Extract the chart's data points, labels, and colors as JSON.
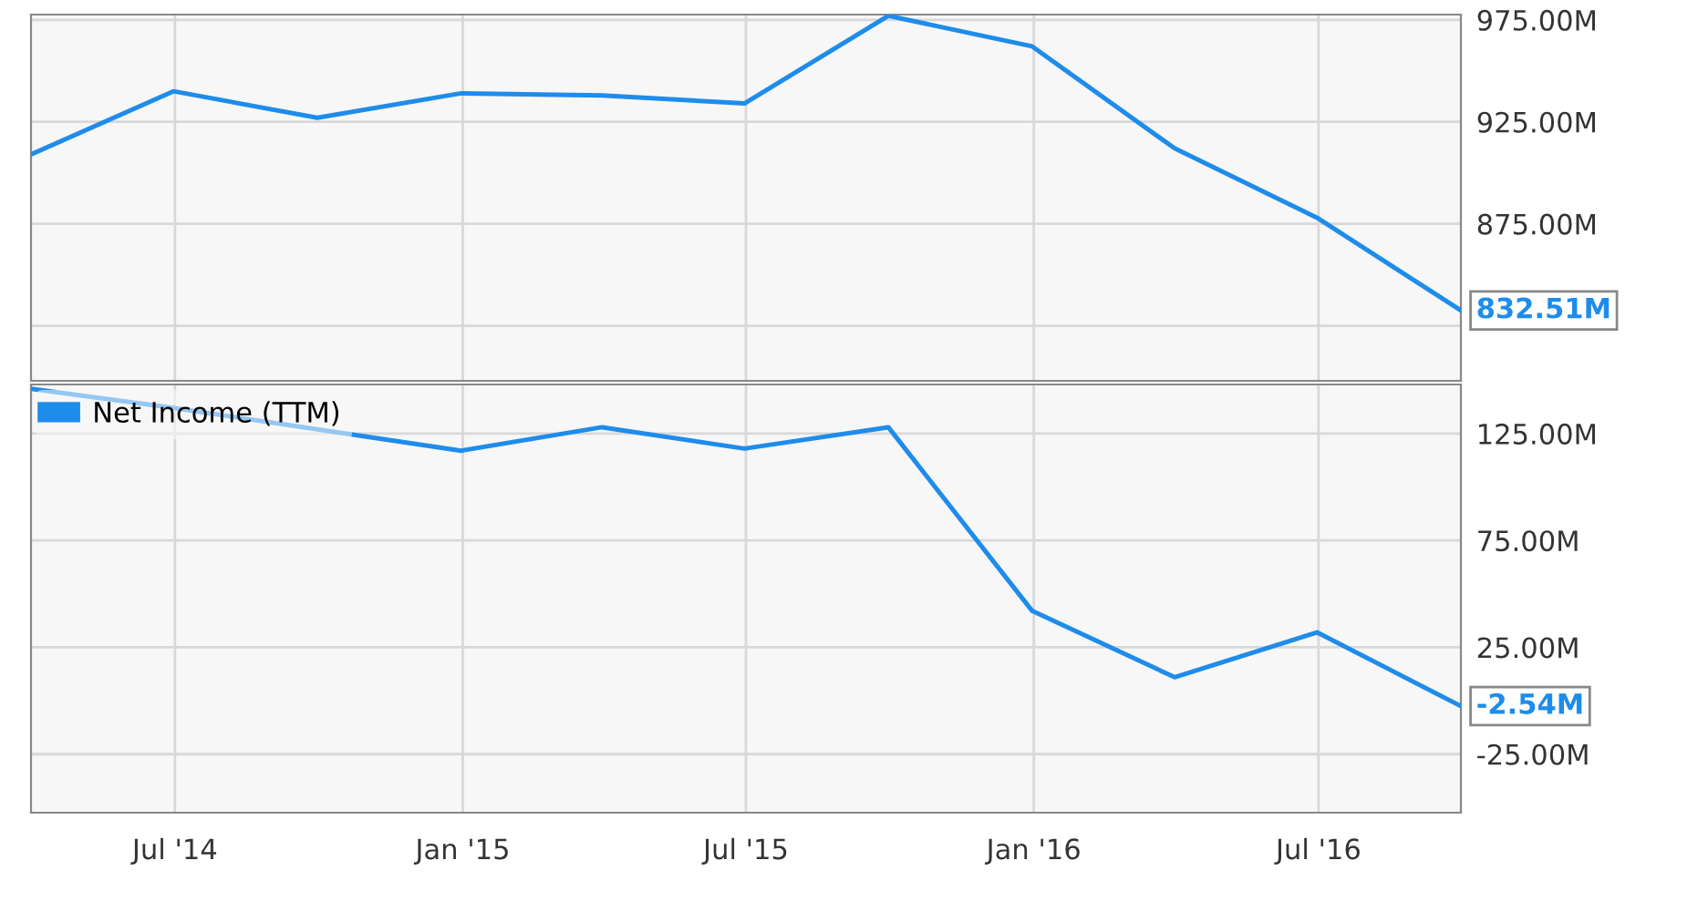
{
  "chart_data": [
    {
      "type": "line",
      "x": [
        "2014-03-31",
        "2014-06-30",
        "2014-09-30",
        "2014-12-31",
        "2015-03-31",
        "2015-06-30",
        "2015-09-30",
        "2015-12-31",
        "2016-03-31",
        "2016-06-30",
        "2016-09-30"
      ],
      "series": [
        {
          "color": "#1e8ceb",
          "values": [
            909,
            940,
            927,
            939,
            938,
            934,
            977,
            962,
            912,
            878,
            832.51
          ],
          "value_labels": [
            null,
            null,
            null,
            null,
            null,
            null,
            null,
            null,
            null,
            null,
            "832.51M"
          ]
        }
      ],
      "xlim": [
        "2014-03-31",
        "2016-09-30"
      ],
      "xticks": [
        {
          "value": "2014-07-01",
          "label": null
        },
        {
          "value": "2015-01-01",
          "label": null
        },
        {
          "value": "2015-07-01",
          "label": null
        },
        {
          "value": "2016-01-01",
          "label": null
        },
        {
          "value": "2016-07-01",
          "label": null
        }
      ],
      "ylim": [
        798,
        977.6
      ],
      "yticks": [
        {
          "value": 825,
          "label": null
        },
        {
          "value": 875,
          "label": "875.00M"
        },
        {
          "value": 925,
          "label": "925.00M"
        },
        {
          "value": 975,
          "label": "975.00M"
        }
      ],
      "tick_labels": "y",
      "grid": true,
      "marker": "none",
      "line_style": "solid"
    },
    {
      "type": "line",
      "x": [
        "2014-03-31",
        "2014-06-30",
        "2014-09-30",
        "2014-12-31",
        "2015-03-31",
        "2015-06-30",
        "2015-09-30",
        "2015-12-31",
        "2016-03-31",
        "2016-06-30",
        "2016-09-30"
      ],
      "series": [
        {
          "name": "Net Income (TTM)",
          "color": "#1e8ceb",
          "values": [
            146,
            137,
            127,
            117,
            128,
            118,
            128,
            42,
            11,
            32,
            -2.54
          ],
          "value_labels": [
            null,
            null,
            null,
            null,
            null,
            null,
            null,
            null,
            null,
            null,
            "-2.54M"
          ]
        }
      ],
      "xlim": [
        "2014-03-31",
        "2016-09-30"
      ],
      "xticks": [
        {
          "value": "2014-07-01",
          "label": "Jul '14"
        },
        {
          "value": "2015-01-01",
          "label": "Jan '15"
        },
        {
          "value": "2015-07-01",
          "label": "Jul '15"
        },
        {
          "value": "2016-01-01",
          "label": "Jan '16"
        },
        {
          "value": "2016-07-01",
          "label": "Jul '16"
        }
      ],
      "ylim": [
        -52.4,
        148
      ],
      "yticks": [
        {
          "value": -25,
          "label": "-25.00M"
        },
        {
          "value": 25,
          "label": "25.00M"
        },
        {
          "value": 75,
          "label": "75.00M"
        },
        {
          "value": 125,
          "label": "125.00M"
        }
      ],
      "grid": true,
      "legend": "top left",
      "marker": "none",
      "line_style": "solid"
    }
  ]
}
